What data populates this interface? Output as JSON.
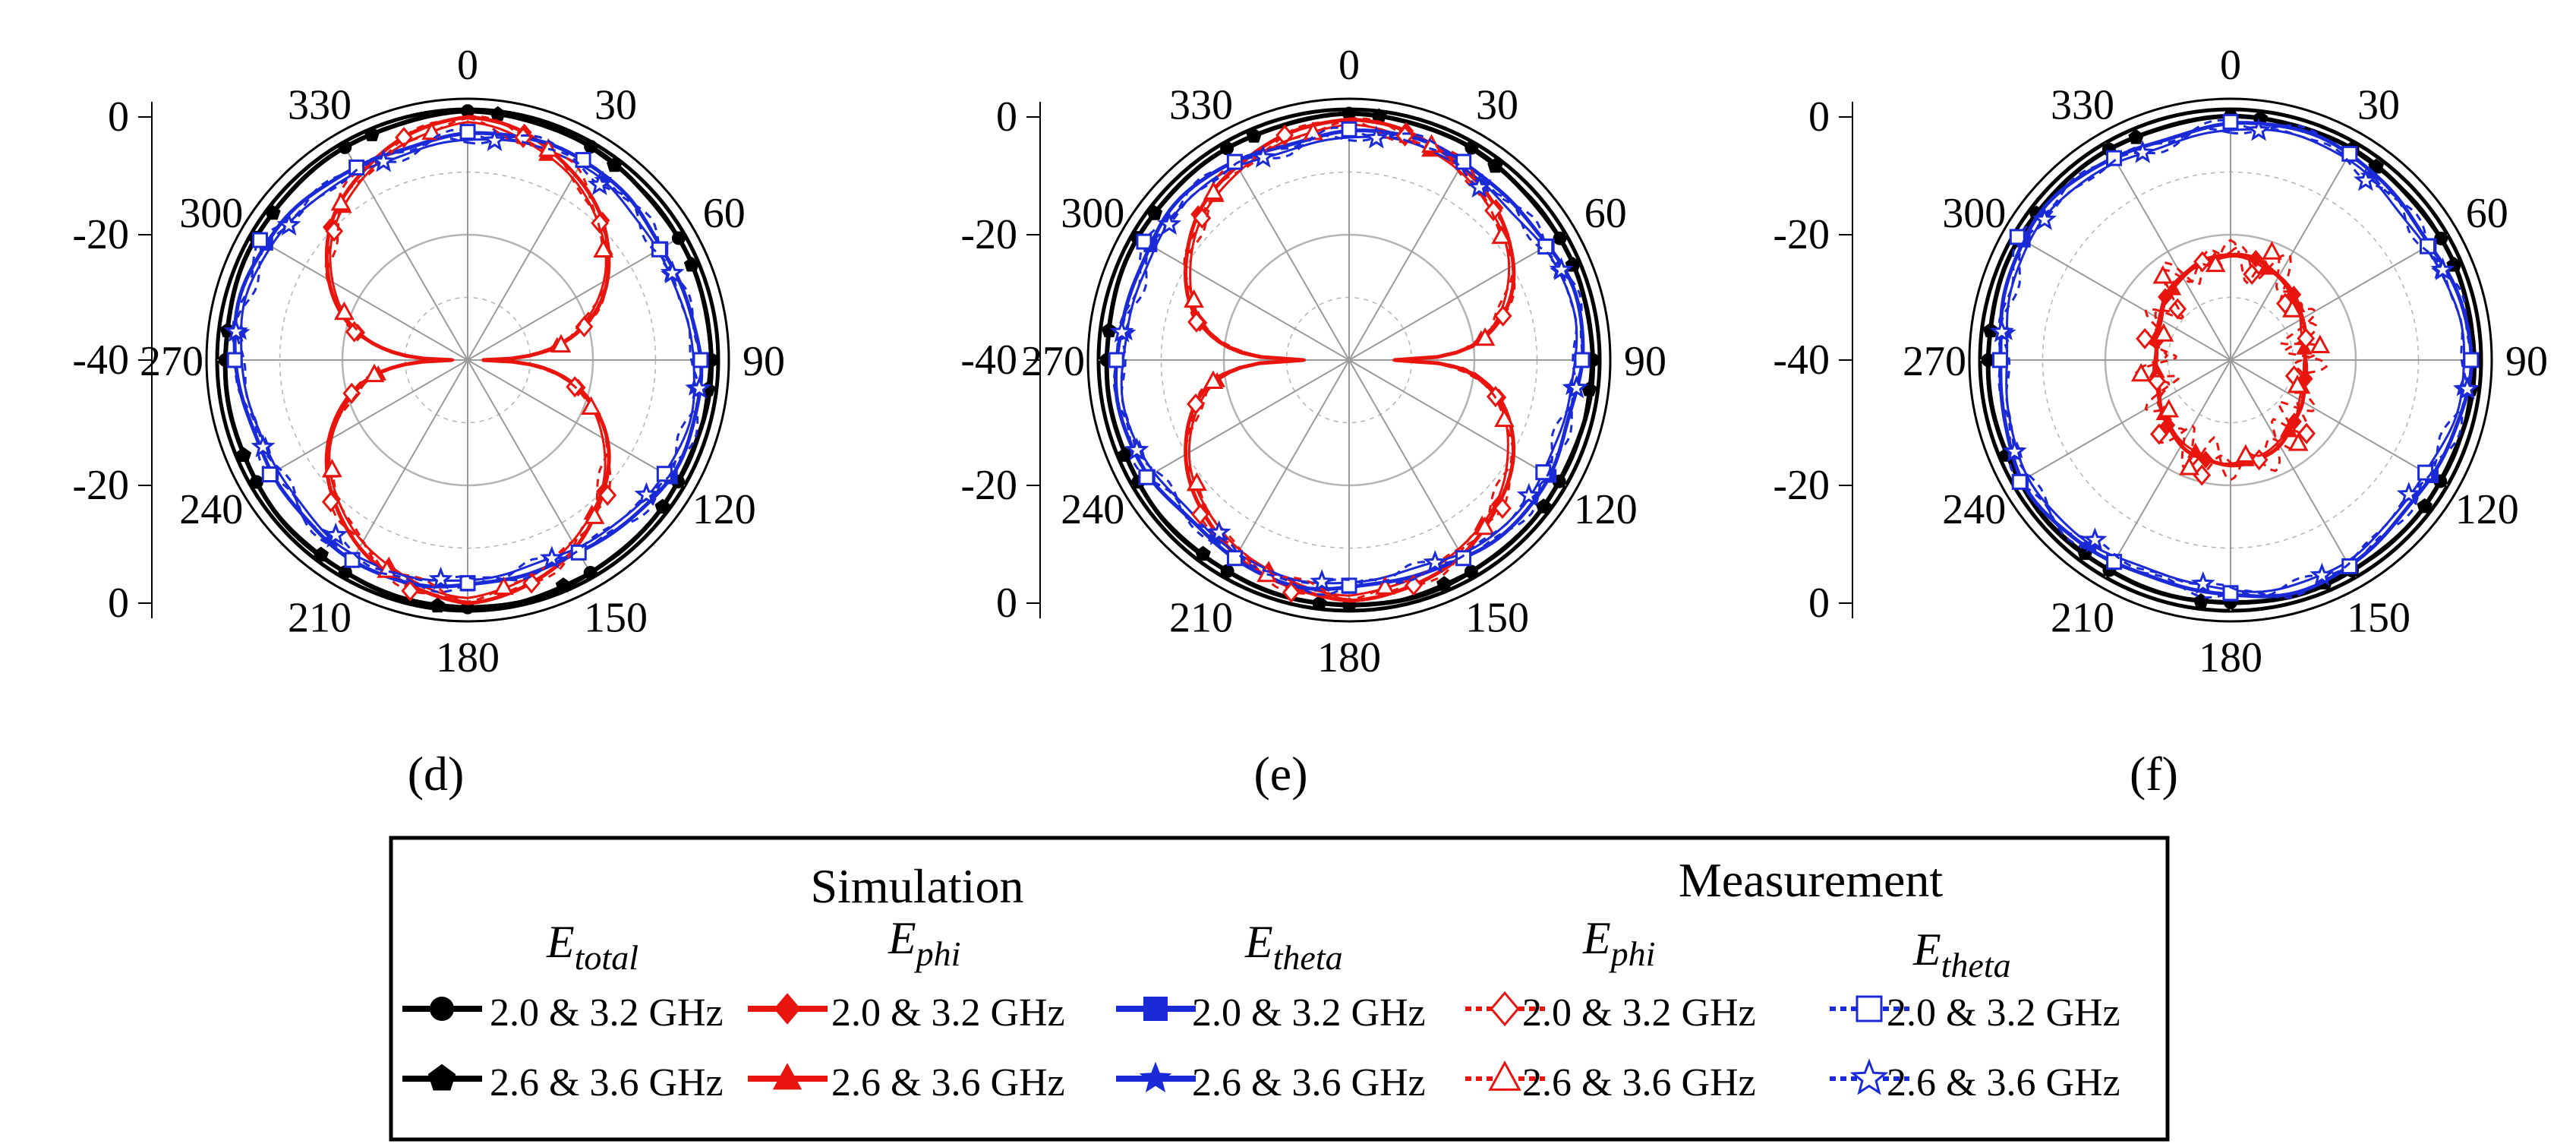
{
  "chart_data": {
    "type": "polar-line",
    "description_units": "dB (normalized gain), radial axis from -40 (center) to 0 (outer ring)",
    "radial_axis": {
      "range": [
        -40,
        0
      ],
      "ticks": [
        "0",
        "-20",
        "-40",
        "-20",
        "0"
      ]
    },
    "angle_ticks": [
      "0",
      "30",
      "60",
      "90",
      "120",
      "150",
      "180",
      "210",
      "240",
      "270",
      "300",
      "330"
    ],
    "panels": [
      {
        "label": "(d)",
        "kind": "dipole_vertical",
        "series": [
          "Sim Etotal 2.0&3.2",
          "Sim Etotal 2.6&3.6",
          "Sim Ephi 2.0&3.2",
          "Sim Ephi 2.6&3.6",
          "Sim Etheta 2.0&3.2",
          "Sim Etheta 2.6&3.6",
          "Meas Ephi 2.0&3.2",
          "Meas Ephi 2.6&3.6",
          "Meas Etheta 2.0&3.2",
          "Meas Etheta 2.6&3.6"
        ]
      },
      {
        "label": "(e)",
        "kind": "dipole_vertical_wide",
        "series": [
          "Sim Etotal 2.0&3.2",
          "Sim Etotal 2.6&3.6",
          "Sim Ephi 2.0&3.2",
          "Sim Ephi 2.6&3.6",
          "Sim Etheta 2.0&3.2",
          "Sim Etheta 2.6&3.6",
          "Meas Ephi 2.0&3.2",
          "Meas Ephi 2.6&3.6",
          "Meas Etheta 2.0&3.2",
          "Meas Etheta 2.6&3.6"
        ]
      },
      {
        "label": "(f)",
        "kind": "omni_with_inner_lobes",
        "series": [
          "Sim Etotal 2.0&3.2",
          "Sim Etotal 2.6&3.6",
          "Sim Ephi 2.0&3.2",
          "Sim Ephi 2.6&3.6",
          "Sim Etheta 2.0&3.2",
          "Sim Etheta 2.6&3.6",
          "Meas Ephi 2.0&3.2",
          "Meas Ephi 2.6&3.6",
          "Meas Etheta 2.0&3.2",
          "Meas Etheta 2.6&3.6"
        ]
      }
    ],
    "legend": {
      "group_sim": "Simulation",
      "group_meas": "Measurement",
      "col_total": {
        "base": "E",
        "sub": "total"
      },
      "col_phi": {
        "base": "E",
        "sub": "phi"
      },
      "col_theta": {
        "base": "E",
        "sub": "theta"
      },
      "entry1": "2.0 & 3.2 GHz",
      "entry2": "2.6 & 3.6 GHz"
    }
  },
  "colors": {
    "black": "#000000",
    "red": "#e8150f",
    "blue": "#1a2ad6",
    "grid": "#b4b4b4"
  }
}
